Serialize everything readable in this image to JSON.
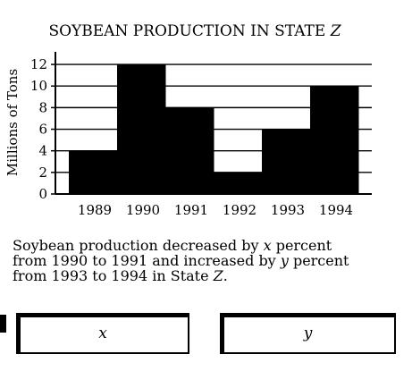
{
  "chart_data": {
    "type": "bar",
    "title": "SOYBEAN PRODUCTION IN STATE",
    "title_var": "Z",
    "ylabel": "Millions of Tons",
    "xlabel": "",
    "categories": [
      "1989",
      "1990",
      "1991",
      "1992",
      "1993",
      "1994"
    ],
    "values": [
      4,
      12,
      8,
      2,
      6,
      10
    ],
    "ylim": [
      0,
      13
    ],
    "yticks": [
      0,
      2,
      4,
      6,
      8,
      10,
      12
    ],
    "grid": true,
    "bar_color": "#000000"
  },
  "question": {
    "line1_a": "Soybean production decreased by ",
    "var_x": "x",
    "line1_b": " percent",
    "line2_a": "from 1990 to 1991 and increased by ",
    "var_y": "y",
    "line2_b": " percent",
    "line3_a": "from 1993 to 1994 in State ",
    "var_z": "Z",
    "line3_b": "."
  },
  "answers": {
    "x_label": "x",
    "y_label": "y"
  }
}
